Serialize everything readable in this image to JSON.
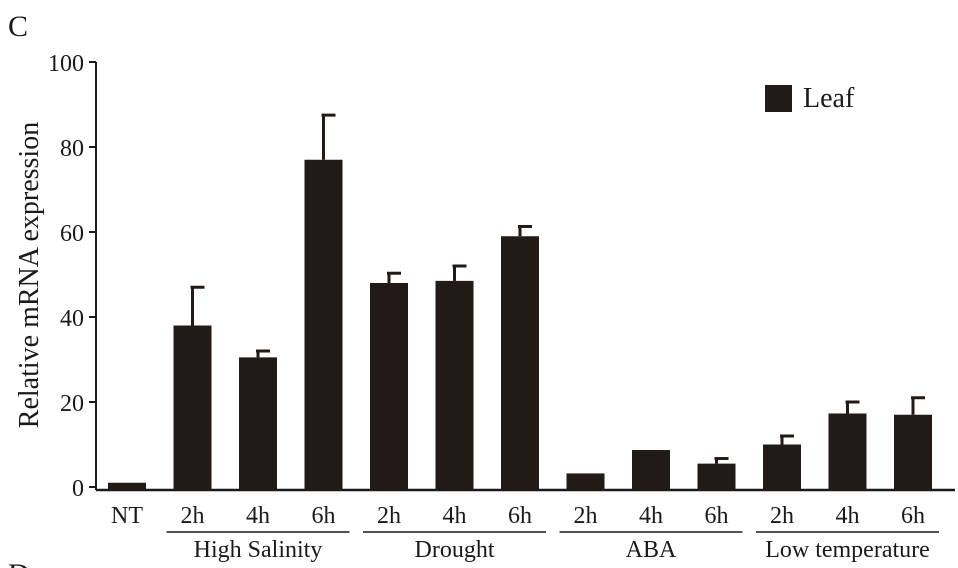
{
  "panel_label": "C",
  "next_panel_label": "D",
  "chart_data": {
    "type": "bar",
    "ylabel": "Relative mRNA expression",
    "ylim": [
      0,
      100
    ],
    "yticks": [
      0,
      20,
      40,
      60,
      80,
      100
    ],
    "categories": [
      "NT",
      "2h",
      "4h",
      "6h",
      "2h",
      "4h",
      "6h",
      "2h",
      "4h",
      "6h",
      "2h",
      "4h",
      "6h"
    ],
    "groups": [
      {
        "label": "High Salinity",
        "from": 1,
        "to": 3
      },
      {
        "label": "Drought",
        "from": 4,
        "to": 6
      },
      {
        "label": "ABA",
        "from": 7,
        "to": 9
      },
      {
        "label": "Low temperature",
        "from": 10,
        "to": 12
      }
    ],
    "series": [
      {
        "name": "Leaf",
        "values": [
          1,
          38,
          30.5,
          77,
          48,
          48.5,
          59,
          3.2,
          8.7,
          5.5,
          10,
          17.3,
          17
        ],
        "errors": [
          0.2,
          9,
          1.5,
          10.5,
          2.3,
          3.5,
          2.3,
          0.4,
          0.3,
          1.2,
          2,
          2.7,
          4
        ]
      }
    ],
    "colors": {
      "bar": "#221a17",
      "axis": "#1a1a1a"
    },
    "legend_position": "top-right",
    "grid": false
  }
}
